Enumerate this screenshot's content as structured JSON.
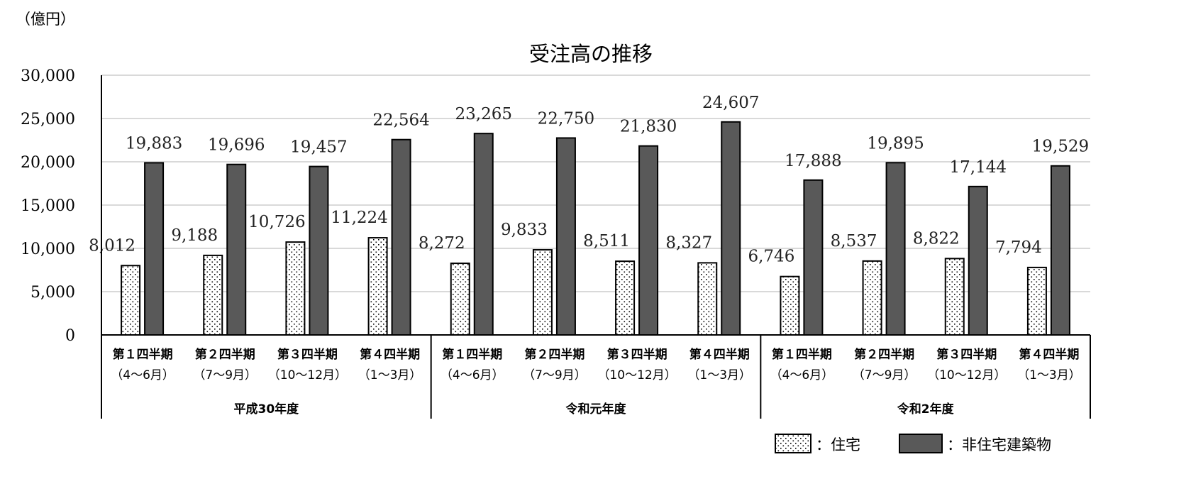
{
  "chart_data": {
    "type": "bar",
    "title": "受注高の推移",
    "unit_label": "（億円）",
    "ylim": [
      0,
      30000
    ],
    "yticks": [
      "0",
      "5,000",
      "10,000",
      "15,000",
      "20,000",
      "25,000",
      "30,000"
    ],
    "ytick_values": [
      0,
      5000,
      10000,
      15000,
      20000,
      25000,
      30000
    ],
    "grid": true,
    "legend_position": "bottom-right",
    "categories": [
      {
        "quarter": "第１四半期",
        "months": "（4〜6月）"
      },
      {
        "quarter": "第２四半期",
        "months": "（7〜9月）"
      },
      {
        "quarter": "第３四半期",
        "months": "（10〜12月）"
      },
      {
        "quarter": "第４四半期",
        "months": "（1〜3月）"
      },
      {
        "quarter": "第１四半期",
        "months": "（4〜6月）"
      },
      {
        "quarter": "第２四半期",
        "months": "（7〜9月）"
      },
      {
        "quarter": "第３四半期",
        "months": "（10〜12月）"
      },
      {
        "quarter": "第４四半期",
        "months": "（1〜3月）"
      },
      {
        "quarter": "第１四半期",
        "months": "（4〜6月）"
      },
      {
        "quarter": "第２四半期",
        "months": "（7〜9月）"
      },
      {
        "quarter": "第３四半期",
        "months": "（10〜12月）"
      },
      {
        "quarter": "第４四半期",
        "months": "（1〜3月）"
      }
    ],
    "fiscal_years": [
      "平成30年度",
      "令和元年度",
      "令和2年度"
    ],
    "series": [
      {
        "name": "：住宅",
        "pattern": "dotted",
        "color": "#ffffff",
        "values": [
          8012,
          9188,
          10726,
          11224,
          8272,
          9833,
          8511,
          8327,
          6746,
          8537,
          8822,
          7794
        ],
        "labels": [
          "8,012",
          "9,188",
          "10,726",
          "11,224",
          "8,272",
          "9,833",
          "8,511",
          "8,327",
          "6,746",
          "8,537",
          "8,822",
          "7,794"
        ]
      },
      {
        "name": "：非住宅建築物",
        "pattern": "solid",
        "color": "#595959",
        "values": [
          19883,
          19696,
          19457,
          22564,
          23265,
          22750,
          21830,
          24607,
          17888,
          19895,
          17144,
          19529
        ],
        "labels": [
          "19,883",
          "19,696",
          "19,457",
          "22,564",
          "23,265",
          "22,750",
          "21,830",
          "24,607",
          "17,888",
          "19,895",
          "17,144",
          "19,529"
        ]
      }
    ]
  }
}
